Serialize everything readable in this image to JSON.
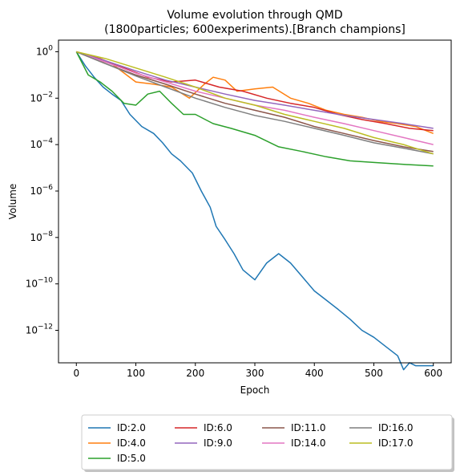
{
  "chart_data": {
    "type": "line",
    "title_line1": "Volume evolution through QMD",
    "title_line2": "(1800particles; 600experiments).[Branch champions]",
    "xlabel": "Epoch",
    "ylabel": "Volume",
    "xlim": [
      -30,
      630
    ],
    "ylim_log10": [
      -13.4,
      0.5
    ],
    "yscale": "log",
    "xticks": [
      0,
      100,
      200,
      300,
      400,
      500,
      600
    ],
    "yticks": [
      {
        "exp": 0,
        "base": "10",
        "sup": "0"
      },
      {
        "exp": -2,
        "base": "10",
        "sup": "−2"
      },
      {
        "exp": -4,
        "base": "10",
        "sup": "−4"
      },
      {
        "exp": -6,
        "base": "10",
        "sup": "−6"
      },
      {
        "exp": -8,
        "base": "10",
        "sup": "−8"
      },
      {
        "exp": -10,
        "base": "10",
        "sup": "−10"
      },
      {
        "exp": -12,
        "base": "10",
        "sup": "−12"
      }
    ],
    "grid": false,
    "legend_position": "below-center",
    "legend_columns": 4,
    "series": [
      {
        "name": "ID:2.0",
        "color": "#1f77b4",
        "x": [
          0,
          15,
          30,
          45,
          60,
          75,
          90,
          110,
          130,
          145,
          160,
          175,
          195,
          210,
          225,
          235,
          250,
          265,
          280,
          300,
          320,
          340,
          360,
          380,
          400,
          420,
          440,
          460,
          480,
          500,
          520,
          540,
          550,
          560,
          570,
          580,
          600
        ],
        "y": [
          1.0,
          0.25,
          0.08,
          0.03,
          0.015,
          0.008,
          0.002,
          0.0006,
          0.0003,
          0.00012,
          4e-05,
          2e-05,
          6e-06,
          1e-06,
          2e-07,
          3e-08,
          8e-09,
          2e-09,
          4e-10,
          1.5e-10,
          8e-10,
          2e-09,
          8e-10,
          2e-10,
          5e-11,
          2e-11,
          8e-12,
          3e-12,
          1e-12,
          5e-13,
          2e-13,
          8e-14,
          2e-14,
          4e-14,
          3e-14,
          3e-14,
          3e-14
        ]
      },
      {
        "name": "ID:4.0",
        "color": "#ff7f0e",
        "x": [
          0,
          30,
          60,
          100,
          130,
          160,
          190,
          215,
          230,
          250,
          270,
          300,
          330,
          360,
          390,
          420,
          450,
          480,
          510,
          540,
          570,
          600
        ],
        "y": [
          1.0,
          0.5,
          0.3,
          0.05,
          0.04,
          0.03,
          0.01,
          0.04,
          0.08,
          0.06,
          0.02,
          0.025,
          0.03,
          0.01,
          0.006,
          0.003,
          0.002,
          0.0015,
          0.001,
          0.0008,
          0.0006,
          0.0003
        ]
      },
      {
        "name": "ID:5.0",
        "color": "#2ca02c",
        "x": [
          0,
          20,
          40,
          60,
          80,
          100,
          120,
          140,
          160,
          180,
          200,
          230,
          260,
          300,
          340,
          380,
          420,
          460,
          500,
          550,
          600
        ],
        "y": [
          1.0,
          0.1,
          0.05,
          0.02,
          0.006,
          0.005,
          0.015,
          0.02,
          0.006,
          0.002,
          0.002,
          0.0008,
          0.0005,
          0.00025,
          8e-05,
          5e-05,
          3e-05,
          2e-05,
          1.7e-05,
          1.4e-05,
          1.2e-05
        ]
      },
      {
        "name": "ID:6.0",
        "color": "#d62728",
        "x": [
          0,
          40,
          80,
          120,
          160,
          200,
          240,
          280,
          320,
          360,
          400,
          440,
          480,
          520,
          560,
          600
        ],
        "y": [
          1.0,
          0.5,
          0.2,
          0.08,
          0.05,
          0.06,
          0.03,
          0.02,
          0.01,
          0.006,
          0.004,
          0.002,
          0.0012,
          0.0008,
          0.0005,
          0.0004
        ]
      },
      {
        "name": "ID:9.0",
        "color": "#9467bd",
        "x": [
          0,
          50,
          100,
          150,
          200,
          250,
          300,
          350,
          400,
          450,
          500,
          550,
          600
        ],
        "y": [
          1.0,
          0.4,
          0.15,
          0.06,
          0.03,
          0.015,
          0.008,
          0.005,
          0.003,
          0.0018,
          0.0012,
          0.0008,
          0.0005
        ]
      },
      {
        "name": "ID:11.0",
        "color": "#8c564b",
        "x": [
          0,
          50,
          100,
          150,
          200,
          250,
          300,
          350,
          400,
          450,
          500,
          550,
          600
        ],
        "y": [
          1.0,
          0.3,
          0.1,
          0.04,
          0.015,
          0.006,
          0.003,
          0.0015,
          0.0006,
          0.0003,
          0.00015,
          8e-05,
          5e-05
        ]
      },
      {
        "name": "ID:14.0",
        "color": "#e377c2",
        "x": [
          0,
          50,
          100,
          150,
          200,
          250,
          300,
          350,
          400,
          450,
          500,
          550,
          600
        ],
        "y": [
          1.0,
          0.35,
          0.12,
          0.05,
          0.02,
          0.01,
          0.005,
          0.003,
          0.0015,
          0.0008,
          0.0004,
          0.0002,
          0.0001
        ]
      },
      {
        "name": "ID:16.0",
        "color": "#7f7f7f",
        "x": [
          0,
          50,
          100,
          150,
          200,
          250,
          300,
          350,
          400,
          450,
          500,
          550,
          600
        ],
        "y": [
          1.0,
          0.3,
          0.09,
          0.03,
          0.01,
          0.004,
          0.0018,
          0.001,
          0.0005,
          0.00025,
          0.00012,
          7e-05,
          4e-05
        ]
      },
      {
        "name": "ID:17.0",
        "color": "#bcbd22",
        "x": [
          0,
          50,
          100,
          150,
          200,
          250,
          300,
          350,
          400,
          450,
          500,
          550,
          600
        ],
        "y": [
          1.0,
          0.5,
          0.2,
          0.08,
          0.03,
          0.01,
          0.005,
          0.002,
          0.001,
          0.0005,
          0.0002,
          0.0001,
          4e-05
        ]
      }
    ]
  }
}
